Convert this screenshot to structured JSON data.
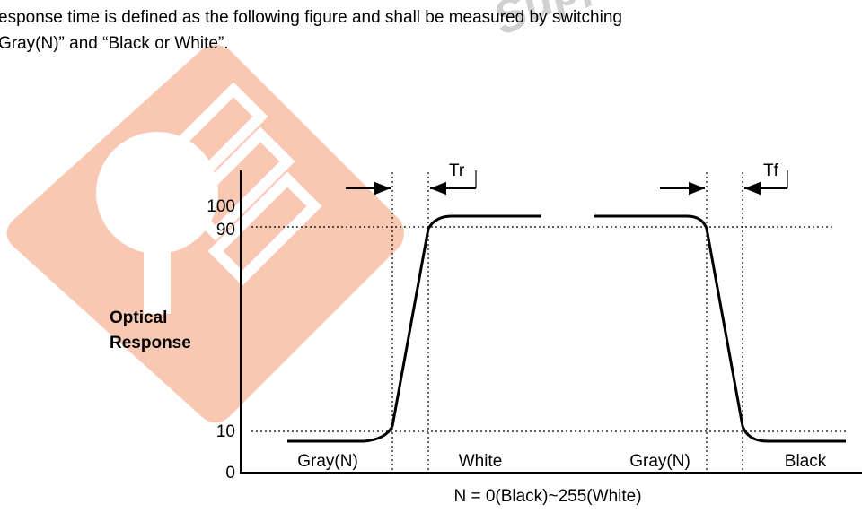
{
  "paragraph": {
    "lines": [
      "esponse time is defined as the following figure and shall be measured by switching",
      "Gray(N)” and “Black or White”."
    ]
  },
  "watermark": "Supp",
  "figure": {
    "y_axis_title": [
      "Optical",
      "Response"
    ],
    "y_labels": [
      "100",
      "90",
      "10",
      "0"
    ],
    "rise_label": "Tr",
    "fall_label": "Tf",
    "segment_labels": [
      "Gray(N)",
      "White",
      "Gray(N)",
      "Black"
    ],
    "caption": "N = 0(Black)~255(White)"
  }
}
